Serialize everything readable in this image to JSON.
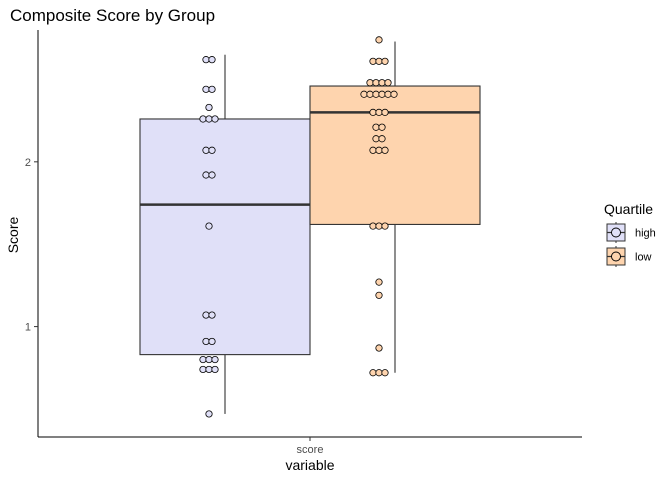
{
  "chart_data": {
    "type": "boxplot",
    "title": "Composite Score by Group",
    "xlabel": "variable",
    "ylabel": "Score",
    "categories": [
      "score"
    ],
    "y_ticks": [
      1,
      2
    ],
    "ylim": [
      0.33,
      2.8
    ],
    "grid": false,
    "legend": {
      "title": "Quartile",
      "placement": "right",
      "entries": [
        {
          "name": "high",
          "color": "#e0e0f8"
        },
        {
          "name": "low",
          "color": "#fed4ae"
        }
      ]
    },
    "series": [
      {
        "name": "high",
        "color": "#e0e0f8",
        "box": {
          "min": 0.47,
          "q1": 0.83,
          "median": 1.74,
          "q3": 2.26,
          "max": 2.65
        },
        "points": [
          0.47,
          0.74,
          0.74,
          0.74,
          0.8,
          0.8,
          0.8,
          0.91,
          0.91,
          1.07,
          1.07,
          1.61,
          1.92,
          1.92,
          2.07,
          2.07,
          2.26,
          2.26,
          2.26,
          2.33,
          2.44,
          2.44,
          2.62,
          2.62
        ]
      },
      {
        "name": "low",
        "color": "#fed4ae",
        "box": {
          "min": 0.72,
          "q1": 1.62,
          "median": 2.3,
          "q3": 2.46,
          "max": 2.73
        },
        "points": [
          0.72,
          0.72,
          0.72,
          0.87,
          1.19,
          1.27,
          1.61,
          1.61,
          1.61,
          2.07,
          2.07,
          2.07,
          2.14,
          2.14,
          2.21,
          2.21,
          2.3,
          2.3,
          2.3,
          2.41,
          2.41,
          2.41,
          2.41,
          2.41,
          2.41,
          2.48,
          2.48,
          2.48,
          2.48,
          2.61,
          2.61,
          2.61,
          2.74
        ]
      }
    ]
  }
}
